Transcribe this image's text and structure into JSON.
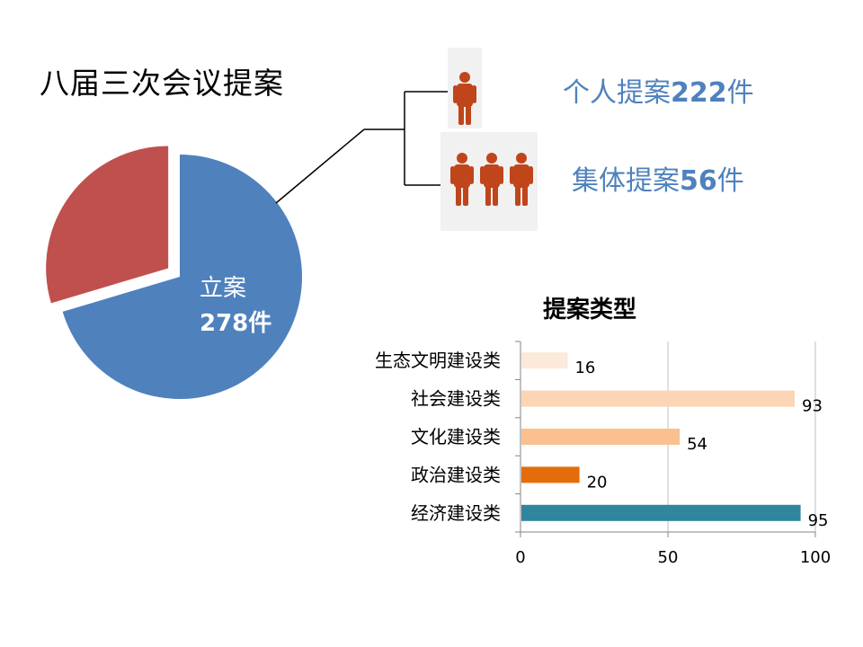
{
  "title": "八届三次会议提案",
  "pie": {
    "label": "立案",
    "count_text": "278件"
  },
  "breakdown": {
    "individual": {
      "label": "个人提案",
      "count": "222",
      "unit": "件",
      "icon": "person-icon"
    },
    "collective": {
      "label": "集体提案",
      "count": "56",
      "unit": "件",
      "icon": "group-icon"
    }
  },
  "colors": {
    "pie_main": "#4f81bd",
    "pie_other": "#c0504d",
    "person": "#c0451b",
    "stat_text": "#4f81bd"
  },
  "chart_data": [
    {
      "type": "pie",
      "title": "",
      "slices": [
        {
          "label": "立案",
          "value": 278,
          "color": "#4f81bd"
        },
        {
          "label": "",
          "value": 117,
          "color": "#c0504d"
        }
      ]
    },
    {
      "type": "bar",
      "orientation": "horizontal",
      "title": "提案类型",
      "categories": [
        "生态文明建设类",
        "社会建设类",
        "文化建设类",
        "政治建设类",
        "经济建设类"
      ],
      "values": [
        16,
        93,
        54,
        20,
        95
      ],
      "colors": [
        "#fde9d9",
        "#fcd5b4",
        "#fac090",
        "#e46c0a",
        "#31859c"
      ],
      "xlim": [
        0,
        100
      ],
      "xticks": [
        "0",
        "50",
        "100"
      ],
      "grid": true
    }
  ]
}
